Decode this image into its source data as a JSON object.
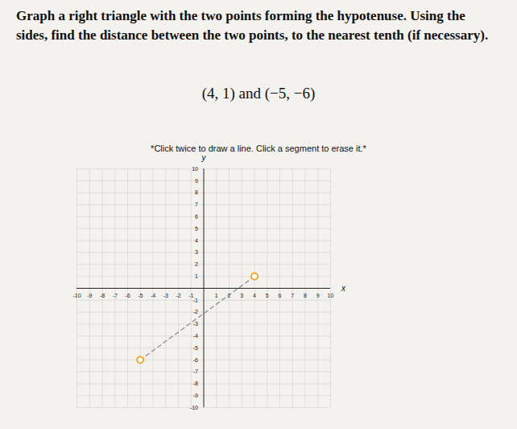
{
  "chart_data": {
    "type": "scatter",
    "title": "Graph a right triangle with the two points forming the hypotenuse. Using the sides, find the distance between the two points, to the nearest tenth (if necessary).",
    "subtitle": "(4, 1) and (−5, −6)",
    "annotations": [
      "*Click twice to draw a line. Click a segment to erase it.*"
    ],
    "x_label": "x",
    "y_label": "y",
    "x": [
      4,
      -5
    ],
    "values": [
      1,
      -6
    ],
    "color": "#f0a020",
    "marker": "circle",
    "line_style": "dashed",
    "xlim": [
      -10,
      10
    ],
    "ylim": [
      -10,
      10
    ],
    "xticks": [
      -10,
      -9,
      -8,
      -7,
      -6,
      -5,
      -4,
      -3,
      -2,
      -1,
      1,
      2,
      3,
      4,
      5,
      6,
      7,
      8,
      9,
      10
    ],
    "yticks": [
      -10,
      -9,
      -8,
      -7,
      -6,
      -5,
      -4,
      -3,
      -2,
      -1,
      1,
      2,
      3,
      4,
      5,
      6,
      7,
      8,
      9,
      10
    ],
    "grid": true
  }
}
